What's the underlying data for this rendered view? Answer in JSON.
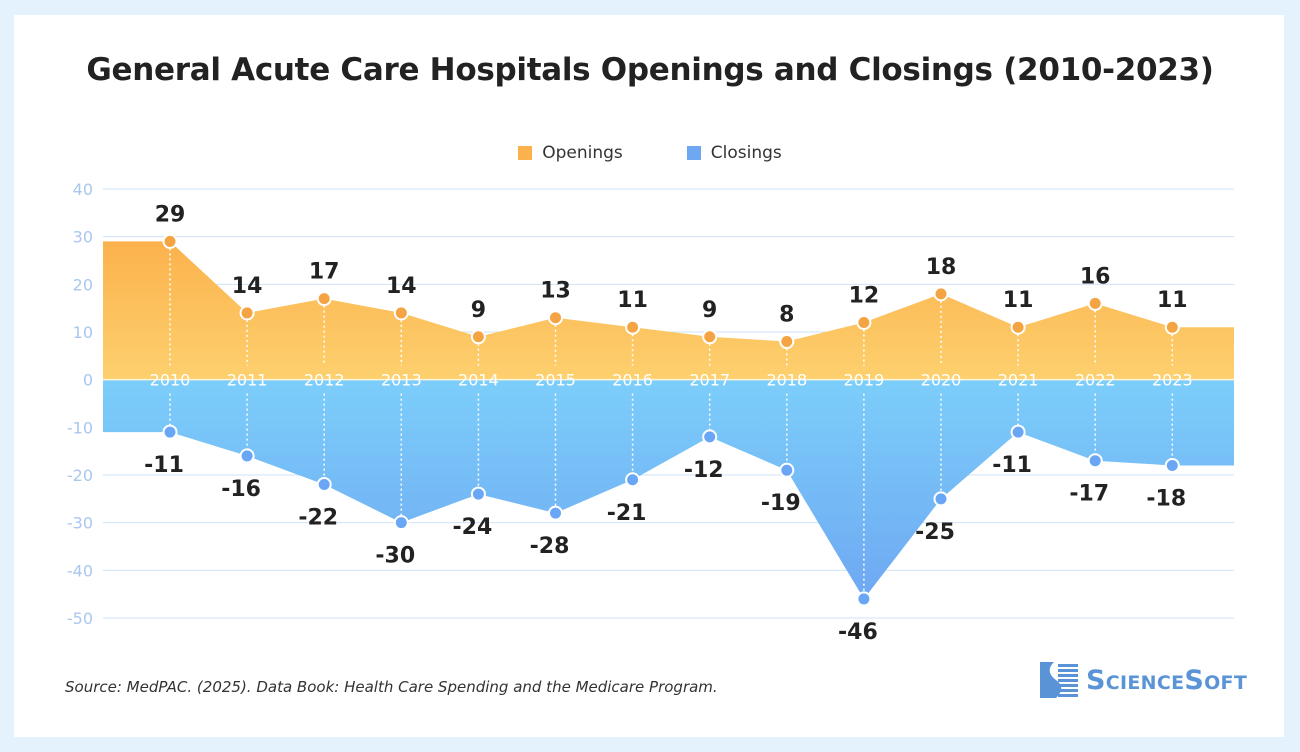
{
  "colors": {
    "openings": "#fbb24d",
    "openings_light": "#fdd06e",
    "closings": "#7ccefa",
    "closings_dark": "#6ea8f2",
    "openings_point": "#f5a443",
    "closings_point": "#6aa6f6",
    "grid": "#cfe3f7",
    "tick": "#a9c7ef",
    "brand": "#5a94d6"
  },
  "footer": {
    "source": "Source: MedPAC. (2025). Data Book: Health Care Spending and the Medicare Program.",
    "logo_text": "ScienceSoft"
  },
  "chart_data": {
    "type": "area",
    "title": "General Acute Care Hospitals Openings and Closings (2010-2023)",
    "xlabel": "",
    "ylabel": "",
    "categories": [
      "2010",
      "2011",
      "2012",
      "2013",
      "2014",
      "2015",
      "2016",
      "2017",
      "2018",
      "2019",
      "2020",
      "2021",
      "2022",
      "2023"
    ],
    "series": [
      {
        "name": "Openings",
        "values": [
          29,
          14,
          17,
          14,
          9,
          13,
          11,
          9,
          8,
          12,
          18,
          11,
          16,
          11
        ]
      },
      {
        "name": "Closings",
        "values": [
          -11,
          -16,
          -22,
          -30,
          -24,
          -28,
          -21,
          -12,
          -19,
          -46,
          -25,
          -11,
          -17,
          -18
        ]
      }
    ],
    "ylim": [
      -50,
      40
    ],
    "yticks": [
      40,
      30,
      20,
      10,
      0,
      -10,
      -20,
      -30,
      -40,
      -50
    ],
    "grid": true,
    "legend": "top-center"
  }
}
